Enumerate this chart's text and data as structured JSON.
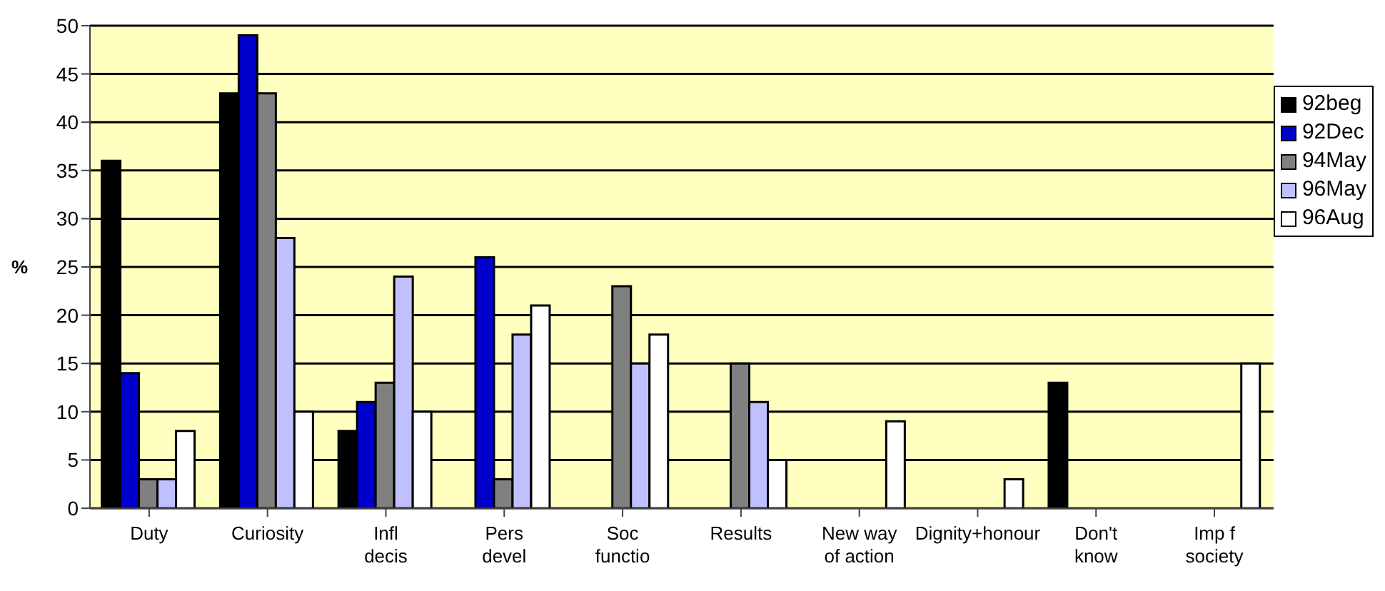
{
  "chart_data": {
    "type": "bar",
    "ylabel": "%",
    "categories": [
      "Duty",
      "Curiosity",
      "Infl decis",
      "Pers devel",
      "Soc functio",
      "Results",
      "New way of action",
      "Dignity+honour",
      "Don't know",
      "Imp f society"
    ],
    "series": [
      {
        "name": "92beg",
        "color": "#000000",
        "values": [
          36,
          43,
          8,
          null,
          null,
          null,
          null,
          null,
          13,
          null
        ]
      },
      {
        "name": "92Dec",
        "color": "#0000cc",
        "values": [
          14,
          49,
          11,
          26,
          null,
          null,
          null,
          null,
          null,
          null
        ]
      },
      {
        "name": "94May",
        "color": "#808080",
        "values": [
          3,
          43,
          13,
          3,
          23,
          15,
          null,
          null,
          null,
          null
        ]
      },
      {
        "name": "96May",
        "color": "#c0c0ff",
        "values": [
          3,
          28,
          24,
          18,
          15,
          11,
          null,
          null,
          null,
          null
        ]
      },
      {
        "name": "96Aug",
        "color": "#ffffff",
        "values": [
          8,
          10,
          10,
          21,
          18,
          5,
          9,
          3,
          null,
          15
        ]
      }
    ],
    "ylim": [
      0,
      50
    ],
    "yticks": [
      0,
      5,
      10,
      15,
      20,
      25,
      30,
      35,
      40,
      45,
      50
    ],
    "grid": "y",
    "legend": "top right"
  }
}
